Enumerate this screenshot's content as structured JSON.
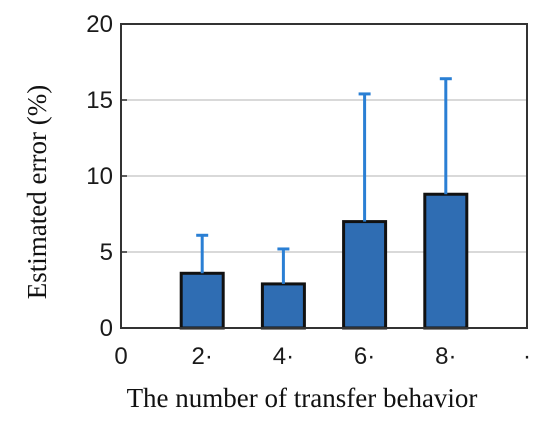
{
  "chart_data": {
    "type": "bar",
    "xlabel": "The number of transfer behavior",
    "ylabel": "Estimated error (%)",
    "x_ticks": [
      "0",
      "2·",
      "4·",
      "6·",
      "8·",
      "·"
    ],
    "y_ticks": [
      0,
      5,
      10,
      15,
      20
    ],
    "ylim": [
      0,
      20
    ],
    "xlim": [
      0,
      10
    ],
    "grid": "horizontal",
    "categories": [
      2,
      4,
      6,
      8
    ],
    "values": [
      3.6,
      2.9,
      7.0,
      8.8
    ],
    "error_upper": [
      6.1,
      5.2,
      15.4,
      16.4
    ],
    "colors": {
      "bar": "#2f6db3",
      "bar_edge": "#111111",
      "errorbar": "#2a7fd4",
      "grid": "#d9d9d9",
      "axis": "#333333"
    }
  }
}
